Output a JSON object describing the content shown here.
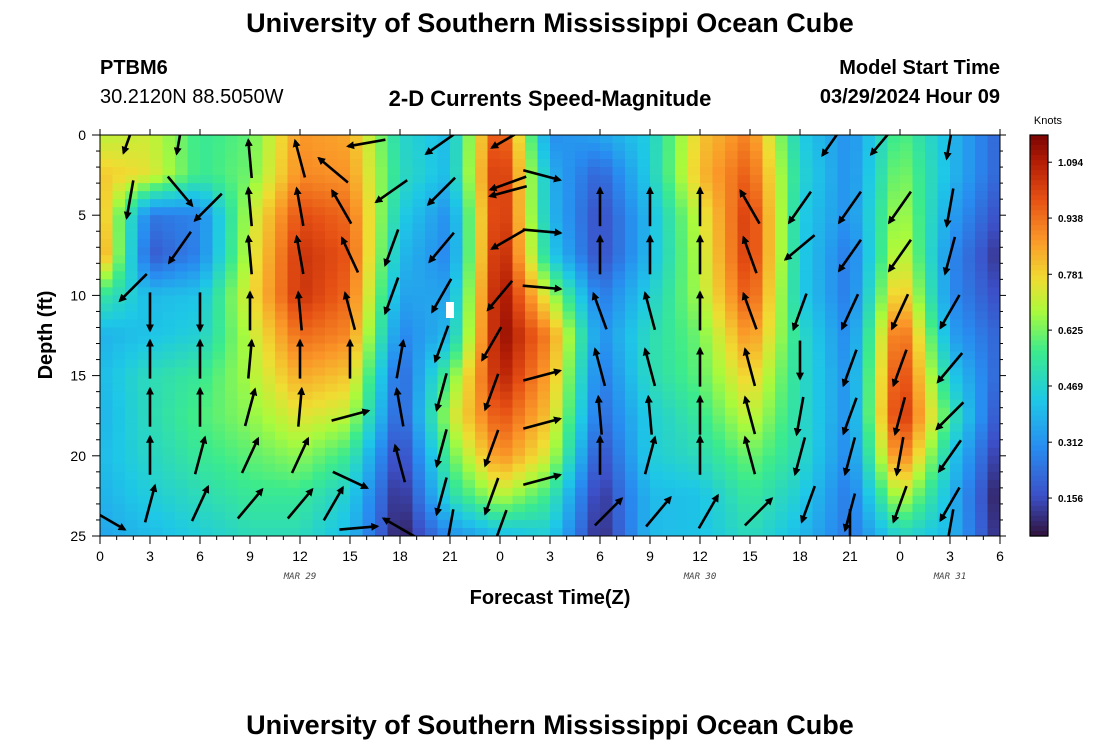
{
  "page": {
    "title_top": "University of Southern Mississippi Ocean Cube",
    "title_bottom": "University of Southern Mississippi Ocean Cube"
  },
  "header": {
    "station": "PTBM6",
    "coords": "30.2120N  88.5050W",
    "subtitle": "2-D Currents Speed-Magnitude",
    "model_start_label": "Model Start Time",
    "model_start_value": "03/29/2024 Hour 09"
  },
  "chart_data": {
    "type": "heatmap",
    "title": "2-D Currents Speed-Magnitude",
    "xlabel": "Forecast Time(Z)",
    "ylabel": "Depth (ft)",
    "x_hours": [
      0,
      3,
      6,
      9,
      12,
      15,
      18,
      21,
      24,
      27,
      30,
      33,
      36,
      39,
      42,
      45,
      48,
      51,
      54
    ],
    "xticks": [
      "0",
      "3",
      "6",
      "9",
      "12",
      "15",
      "18",
      "21",
      "0",
      "3",
      "6",
      "9",
      "12",
      "15",
      "18",
      "21",
      "0",
      "3",
      "6"
    ],
    "date_labels": [
      {
        "hour": 12,
        "label": "MAR 29"
      },
      {
        "hour": 36,
        "label": "MAR 30"
      },
      {
        "hour": 51,
        "label": "MAR 31"
      }
    ],
    "yticks": [
      0,
      5,
      10,
      15,
      20,
      25
    ],
    "ylim": [
      0,
      25
    ],
    "xlim": [
      0,
      54
    ],
    "depths": [
      0,
      2.5,
      5,
      7.5,
      10,
      12.5,
      15,
      17.5,
      20,
      22.5,
      25
    ],
    "speed_units": "Knots",
    "colorbar_ticks": [
      "1.094",
      "0.938",
      "0.781",
      "0.625",
      "0.469",
      "0.312",
      "0.156"
    ],
    "colorbar_values": [
      1.094,
      0.938,
      0.781,
      0.625,
      0.469,
      0.312,
      0.156
    ],
    "vmin": 0.05,
    "vmax": 1.17,
    "speed_grid": [
      [
        0.7,
        0.72,
        0.55,
        0.6,
        0.88,
        0.85,
        0.48,
        0.4,
        1.05,
        0.3,
        0.35,
        0.45,
        0.8,
        0.92,
        0.45,
        0.3,
        0.6,
        0.4,
        0.2
      ],
      [
        0.8,
        0.75,
        0.55,
        0.62,
        0.9,
        0.88,
        0.5,
        0.4,
        1.1,
        0.38,
        0.2,
        0.45,
        0.82,
        0.98,
        0.48,
        0.3,
        0.65,
        0.4,
        0.2
      ],
      [
        0.85,
        0.25,
        0.28,
        0.7,
        1.0,
        0.95,
        0.45,
        0.3,
        1.1,
        0.4,
        0.15,
        0.4,
        0.72,
        1.05,
        0.45,
        0.3,
        0.7,
        0.35,
        0.15
      ],
      [
        0.9,
        0.18,
        0.28,
        0.72,
        1.05,
        0.98,
        0.4,
        0.28,
        1.13,
        0.45,
        0.15,
        0.4,
        0.7,
        1.05,
        0.45,
        0.25,
        0.75,
        0.3,
        0.1
      ],
      [
        0.55,
        0.4,
        0.42,
        0.75,
        1.05,
        0.95,
        0.35,
        0.35,
        1.15,
        0.7,
        0.25,
        0.45,
        0.68,
        1.0,
        0.45,
        0.25,
        0.85,
        0.3,
        0.15
      ],
      [
        0.38,
        0.42,
        0.46,
        0.7,
        0.95,
        0.9,
        0.28,
        0.4,
        1.15,
        0.9,
        0.3,
        0.5,
        0.62,
        0.9,
        0.5,
        0.28,
        1.0,
        0.35,
        0.2
      ],
      [
        0.4,
        0.5,
        0.55,
        0.68,
        0.85,
        0.8,
        0.2,
        0.6,
        1.1,
        0.85,
        0.25,
        0.5,
        0.6,
        0.8,
        0.5,
        0.3,
        1.05,
        0.45,
        0.2
      ],
      [
        0.38,
        0.5,
        0.58,
        0.65,
        0.75,
        0.7,
        0.18,
        0.7,
        1.0,
        0.8,
        0.22,
        0.45,
        0.55,
        0.72,
        0.5,
        0.3,
        1.08,
        0.55,
        0.15
      ],
      [
        0.4,
        0.48,
        0.55,
        0.6,
        0.65,
        0.55,
        0.12,
        0.6,
        0.9,
        0.72,
        0.15,
        0.45,
        0.5,
        0.62,
        0.5,
        0.28,
        0.95,
        0.45,
        0.1
      ],
      [
        0.38,
        0.45,
        0.5,
        0.55,
        0.55,
        0.45,
        0.08,
        0.5,
        0.7,
        0.55,
        0.1,
        0.4,
        0.42,
        0.55,
        0.45,
        0.25,
        0.72,
        0.4,
        0.05
      ],
      [
        0.35,
        0.4,
        0.45,
        0.5,
        0.5,
        0.4,
        0.06,
        0.3,
        0.4,
        0.45,
        0.08,
        0.4,
        0.42,
        0.5,
        0.4,
        0.25,
        0.48,
        0.4,
        0.08
      ]
    ],
    "vectors": [
      {
        "h": 1.8,
        "d": 0,
        "dir": 200
      },
      {
        "h": 4.8,
        "d": 0,
        "dir": 190
      },
      {
        "h": 16,
        "d": 0.5,
        "dir": 260
      },
      {
        "h": 20.5,
        "d": 0.5,
        "dir": 235
      },
      {
        "h": 24.5,
        "d": 0.2,
        "dir": 240
      },
      {
        "h": 44,
        "d": 0.3,
        "dir": 215
      },
      {
        "h": 47,
        "d": 0.3,
        "dir": 220
      },
      {
        "h": 51,
        "d": 0.3,
        "dir": 190
      },
      {
        "h": 9,
        "d": 1.5,
        "dir": 355
      },
      {
        "h": 12,
        "d": 1.5,
        "dir": 345
      },
      {
        "h": 14,
        "d": 2.2,
        "dir": 310
      },
      {
        "h": 24.5,
        "d": 3,
        "dir": 250
      },
      {
        "h": 26.5,
        "d": 2.5,
        "dir": 105
      },
      {
        "h": 1.8,
        "d": 4,
        "dir": 190
      },
      {
        "h": 4.8,
        "d": 3.5,
        "dir": 140
      },
      {
        "h": 6.5,
        "d": 4.5,
        "dir": 225
      },
      {
        "h": 9,
        "d": 4.5,
        "dir": 355
      },
      {
        "h": 12,
        "d": 4.5,
        "dir": 350
      },
      {
        "h": 14.5,
        "d": 4.5,
        "dir": 330
      },
      {
        "h": 17.5,
        "d": 3.5,
        "dir": 235
      },
      {
        "h": 20.5,
        "d": 3.5,
        "dir": 225
      },
      {
        "h": 24.5,
        "d": 3.5,
        "dir": 255
      },
      {
        "h": 30,
        "d": 4.5,
        "dir": 0
      },
      {
        "h": 33,
        "d": 4.5,
        "dir": 0
      },
      {
        "h": 36,
        "d": 4.5,
        "dir": 0
      },
      {
        "h": 39,
        "d": 4.5,
        "dir": 330
      },
      {
        "h": 42,
        "d": 4.5,
        "dir": 215
      },
      {
        "h": 45,
        "d": 4.5,
        "dir": 215
      },
      {
        "h": 48,
        "d": 4.5,
        "dir": 215
      },
      {
        "h": 51,
        "d": 4.5,
        "dir": 190
      },
      {
        "h": 4.8,
        "d": 7,
        "dir": 215
      },
      {
        "h": 9,
        "d": 7.5,
        "dir": 355
      },
      {
        "h": 12,
        "d": 7.5,
        "dir": 350
      },
      {
        "h": 15,
        "d": 7.5,
        "dir": 335
      },
      {
        "h": 17.5,
        "d": 7,
        "dir": 200
      },
      {
        "h": 20.5,
        "d": 7,
        "dir": 220
      },
      {
        "h": 24.5,
        "d": 6.5,
        "dir": 240
      },
      {
        "h": 26.5,
        "d": 6,
        "dir": 95
      },
      {
        "h": 30,
        "d": 7.5,
        "dir": 0
      },
      {
        "h": 33,
        "d": 7.5,
        "dir": 0
      },
      {
        "h": 36,
        "d": 7.5,
        "dir": 0
      },
      {
        "h": 39,
        "d": 7.5,
        "dir": 340
      },
      {
        "h": 42,
        "d": 7,
        "dir": 230
      },
      {
        "h": 45,
        "d": 7.5,
        "dir": 215
      },
      {
        "h": 48,
        "d": 7.5,
        "dir": 215
      },
      {
        "h": 51,
        "d": 7.5,
        "dir": 195
      },
      {
        "h": 2,
        "d": 9.5,
        "dir": 225
      },
      {
        "h": 17.5,
        "d": 10,
        "dir": 200
      },
      {
        "h": 20.5,
        "d": 10,
        "dir": 210
      },
      {
        "h": 24,
        "d": 10,
        "dir": 220
      },
      {
        "h": 26.5,
        "d": 9.5,
        "dir": 95
      },
      {
        "h": 3,
        "d": 11,
        "dir": 180
      },
      {
        "h": 6,
        "d": 11,
        "dir": 180
      },
      {
        "h": 9,
        "d": 11,
        "dir": 0
      },
      {
        "h": 12,
        "d": 11,
        "dir": 355
      },
      {
        "h": 15,
        "d": 11,
        "dir": 345
      },
      {
        "h": 30,
        "d": 11,
        "dir": 340
      },
      {
        "h": 33,
        "d": 11,
        "dir": 345
      },
      {
        "h": 36,
        "d": 11,
        "dir": 0
      },
      {
        "h": 39,
        "d": 11,
        "dir": 340
      },
      {
        "h": 42,
        "d": 11,
        "dir": 200
      },
      {
        "h": 45,
        "d": 11,
        "dir": 205
      },
      {
        "h": 48,
        "d": 11,
        "dir": 205
      },
      {
        "h": 51,
        "d": 11,
        "dir": 210
      },
      {
        "h": 20.5,
        "d": 13,
        "dir": 200
      },
      {
        "h": 23.5,
        "d": 13,
        "dir": 210
      },
      {
        "h": 3,
        "d": 14,
        "dir": 0
      },
      {
        "h": 6,
        "d": 14,
        "dir": 0
      },
      {
        "h": 9,
        "d": 14,
        "dir": 5
      },
      {
        "h": 12,
        "d": 14,
        "dir": 0
      },
      {
        "h": 15,
        "d": 14,
        "dir": 0
      },
      {
        "h": 18,
        "d": 14,
        "dir": 10
      },
      {
        "h": 26.5,
        "d": 15,
        "dir": 75
      },
      {
        "h": 30,
        "d": 14.5,
        "dir": 345
      },
      {
        "h": 33,
        "d": 14.5,
        "dir": 345
      },
      {
        "h": 36,
        "d": 14.5,
        "dir": 0
      },
      {
        "h": 39,
        "d": 14.5,
        "dir": 345
      },
      {
        "h": 42,
        "d": 14,
        "dir": 180
      },
      {
        "h": 45,
        "d": 14.5,
        "dir": 200
      },
      {
        "h": 48,
        "d": 14.5,
        "dir": 200
      },
      {
        "h": 51,
        "d": 14.5,
        "dir": 220
      },
      {
        "h": 20.5,
        "d": 16,
        "dir": 195
      },
      {
        "h": 23.5,
        "d": 16,
        "dir": 200
      },
      {
        "h": 3,
        "d": 17,
        "dir": 0
      },
      {
        "h": 6,
        "d": 17,
        "dir": 0
      },
      {
        "h": 9,
        "d": 17,
        "dir": 15
      },
      {
        "h": 12,
        "d": 17,
        "dir": 5
      },
      {
        "h": 15,
        "d": 17.5,
        "dir": 75
      },
      {
        "h": 18,
        "d": 17,
        "dir": 350
      },
      {
        "h": 26.5,
        "d": 18,
        "dir": 75
      },
      {
        "h": 30,
        "d": 17.5,
        "dir": 355
      },
      {
        "h": 33,
        "d": 17.5,
        "dir": 355
      },
      {
        "h": 36,
        "d": 17.5,
        "dir": 0
      },
      {
        "h": 39,
        "d": 17.5,
        "dir": 345
      },
      {
        "h": 42,
        "d": 17.5,
        "dir": 190
      },
      {
        "h": 45,
        "d": 17.5,
        "dir": 200
      },
      {
        "h": 48,
        "d": 17.5,
        "dir": 195
      },
      {
        "h": 51,
        "d": 17.5,
        "dir": 225
      },
      {
        "h": 20.5,
        "d": 19.5,
        "dir": 195
      },
      {
        "h": 23.5,
        "d": 19.5,
        "dir": 200
      },
      {
        "h": 3,
        "d": 20,
        "dir": 0
      },
      {
        "h": 6,
        "d": 20,
        "dir": 15
      },
      {
        "h": 9,
        "d": 20,
        "dir": 25
      },
      {
        "h": 12,
        "d": 20,
        "dir": 25
      },
      {
        "h": 15,
        "d": 21.5,
        "dir": 115
      },
      {
        "h": 18,
        "d": 20.5,
        "dir": 345
      },
      {
        "h": 26.5,
        "d": 21.5,
        "dir": 75
      },
      {
        "h": 30,
        "d": 20,
        "dir": 0
      },
      {
        "h": 33,
        "d": 20,
        "dir": 15
      },
      {
        "h": 36,
        "d": 20,
        "dir": 0
      },
      {
        "h": 39,
        "d": 20,
        "dir": 345
      },
      {
        "h": 42,
        "d": 20,
        "dir": 195
      },
      {
        "h": 45,
        "d": 20,
        "dir": 195
      },
      {
        "h": 48,
        "d": 20,
        "dir": 190
      },
      {
        "h": 51,
        "d": 20,
        "dir": 215
      },
      {
        "h": 20.5,
        "d": 22.5,
        "dir": 195
      },
      {
        "h": 23.5,
        "d": 22.5,
        "dir": 200
      },
      {
        "h": 3,
        "d": 23,
        "dir": 15
      },
      {
        "h": 6,
        "d": 23,
        "dir": 25
      },
      {
        "h": 9,
        "d": 23,
        "dir": 40
      },
      {
        "h": 12,
        "d": 23,
        "dir": 40
      },
      {
        "h": 14,
        "d": 23,
        "dir": 30
      },
      {
        "h": 15.5,
        "d": 24.5,
        "dir": 85
      },
      {
        "h": 18,
        "d": 24.5,
        "dir": 300
      },
      {
        "h": 30.5,
        "d": 23.5,
        "dir": 45
      },
      {
        "h": 33.5,
        "d": 23.5,
        "dir": 40
      },
      {
        "h": 36.5,
        "d": 23.5,
        "dir": 30
      },
      {
        "h": 39.5,
        "d": 23.5,
        "dir": 45
      },
      {
        "h": 42.5,
        "d": 23,
        "dir": 200
      },
      {
        "h": 45,
        "d": 23.5,
        "dir": 195
      },
      {
        "h": 48,
        "d": 23,
        "dir": 200
      },
      {
        "h": 51,
        "d": 23,
        "dir": 210
      },
      {
        "h": 0.5,
        "d": 24,
        "dir": 120
      },
      {
        "h": 21,
        "d": 24.5,
        "dir": 190
      },
      {
        "h": 24,
        "d": 24.5,
        "dir": 200
      },
      {
        "h": 45,
        "d": 24.5,
        "dir": 180
      },
      {
        "h": 51,
        "d": 24.5,
        "dir": 190
      }
    ]
  }
}
